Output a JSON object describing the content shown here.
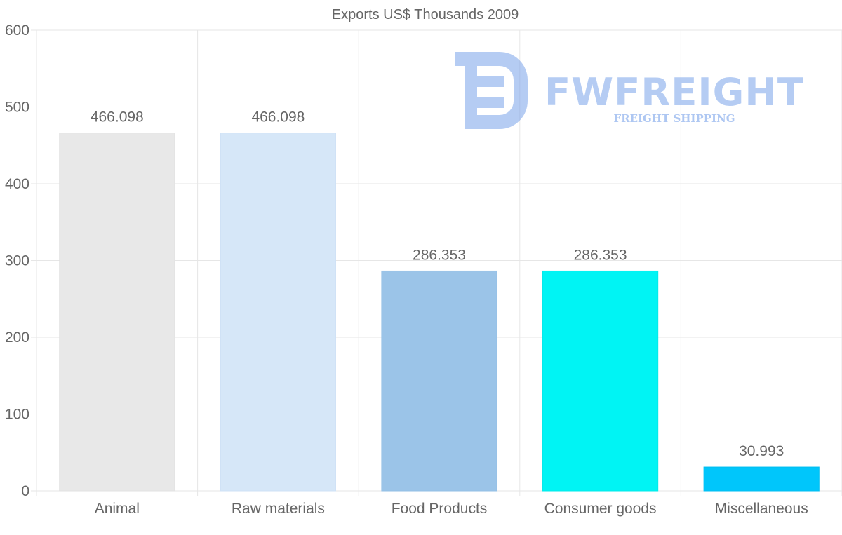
{
  "chart_data": {
    "type": "bar",
    "title": "Exports US$ Thousands 2009",
    "categories": [
      "Animal",
      "Raw materials",
      "Food Products",
      "Consumer goods",
      "Miscellaneous"
    ],
    "values": [
      466.098,
      466.098,
      286.353,
      286.353,
      30.993
    ],
    "value_labels": [
      "466.098",
      "466.098",
      "286.353",
      "286.353",
      "30.993"
    ],
    "colors": [
      "#e8e8e8",
      "#d6e7f8",
      "#9bc4e8",
      "#00f4f4",
      "#00c6fb"
    ],
    "border_colors": [
      "#e2e2e2",
      "#cfe2f6",
      "#93bfe6",
      "#00eaea",
      "#00bdf0"
    ],
    "ylim": [
      0,
      600
    ],
    "yticks": [
      0,
      100,
      200,
      300,
      400,
      500,
      600
    ],
    "xlabel": "",
    "ylabel": "",
    "grid": true,
    "legend": "none"
  },
  "watermark": {
    "brand": "FWFREIGHT",
    "tagline": "FREIGHT SHIPPING",
    "color": "#7aa3ea"
  }
}
